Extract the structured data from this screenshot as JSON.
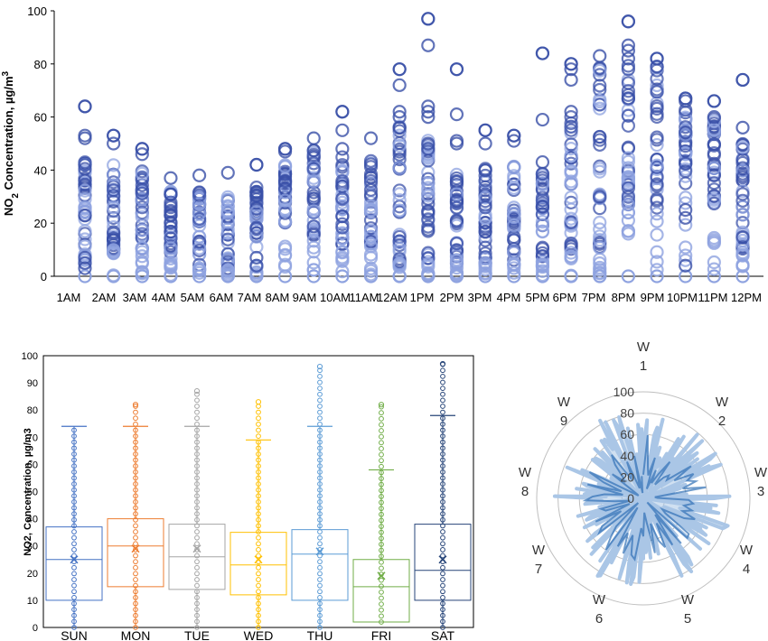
{
  "chart_data": [
    {
      "type": "scatter",
      "ylabel": "NO2 Concentration, µg/m3",
      "ylabel_parts": {
        "pre": "NO",
        "sub": "2",
        "mid": " Concentration, µg/m",
        "sup": "3"
      },
      "ylim": [
        0,
        100
      ],
      "yticks": [
        0,
        20,
        40,
        60,
        80,
        100
      ],
      "categories": [
        "1AM",
        "2AM",
        "3AM",
        "4AM",
        "5AM",
        "6AM",
        "7AM",
        "8AM",
        "9AM",
        "10AM",
        "11AM",
        "12AM",
        "1PM",
        "2PM",
        "3PM",
        "4PM",
        "5PM",
        "6PM",
        "7PM",
        "8PM",
        "9PM",
        "10PM",
        "11PM",
        "12PM"
      ],
      "ranges": [
        [
          0,
          64
        ],
        [
          0,
          53
        ],
        [
          0,
          48
        ],
        [
          0,
          37
        ],
        [
          0,
          38
        ],
        [
          0,
          39
        ],
        [
          0,
          42
        ],
        [
          0,
          48
        ],
        [
          0,
          52
        ],
        [
          0,
          62
        ],
        [
          0,
          52
        ],
        [
          0,
          78
        ],
        [
          0,
          97
        ],
        [
          0,
          78
        ],
        [
          0,
          55
        ],
        [
          0,
          53
        ],
        [
          0,
          84
        ],
        [
          0,
          80
        ],
        [
          0,
          83
        ],
        [
          0,
          96
        ],
        [
          0,
          82
        ],
        [
          0,
          67
        ],
        [
          0,
          66
        ],
        [
          0,
          74
        ]
      ],
      "dense_ranges": [
        [
          12,
          45
        ],
        [
          10,
          42
        ],
        [
          8,
          40
        ],
        [
          5,
          32
        ],
        [
          3,
          33
        ],
        [
          3,
          30
        ],
        [
          10,
          35
        ],
        [
          18,
          42
        ],
        [
          15,
          48
        ],
        [
          10,
          45
        ],
        [
          12,
          45
        ],
        [
          5,
          58
        ],
        [
          5,
          52
        ],
        [
          5,
          40
        ],
        [
          5,
          42
        ],
        [
          5,
          42
        ],
        [
          5,
          42
        ],
        [
          10,
          60
        ],
        [
          5,
          80
        ],
        [
          25,
          85
        ],
        [
          25,
          80
        ],
        [
          35,
          65
        ],
        [
          25,
          60
        ],
        [
          10,
          50
        ]
      ],
      "outliers": [
        [
          1,
          [
            64,
            53,
            52,
            7,
            5,
            3
          ]
        ],
        [
          2,
          [
            53,
            50
          ]
        ],
        [
          3,
          [
            48,
            46
          ]
        ],
        [
          7,
          [
            42,
            7,
            4
          ]
        ],
        [
          8,
          [
            48,
            47
          ]
        ],
        [
          10,
          [
            62,
            55,
            48
          ]
        ],
        [
          12,
          [
            78,
            72,
            62,
            60,
            56
          ]
        ],
        [
          13,
          [
            97,
            87,
            64,
            62,
            60,
            50,
            48
          ]
        ],
        [
          14,
          [
            78,
            61,
            51,
            50
          ]
        ],
        [
          15,
          [
            55,
            50
          ]
        ],
        [
          16,
          [
            53,
            51
          ]
        ],
        [
          17,
          [
            84,
            59,
            43
          ]
        ],
        [
          18,
          [
            80,
            78,
            74,
            62
          ]
        ],
        [
          20,
          [
            96,
            87,
            85,
            82,
            78
          ]
        ],
        [
          21,
          [
            82,
            79
          ]
        ],
        [
          22,
          [
            67,
            66,
            25,
            22,
            4
          ]
        ],
        [
          23,
          [
            66,
            60
          ]
        ],
        [
          24,
          [
            74,
            56
          ]
        ]
      ],
      "grid": false,
      "marker": "hollow-circle"
    },
    {
      "type": "box",
      "ylabel": "NO2, Concentration, µg/m3",
      "ylim": [
        0,
        100
      ],
      "yticks": [
        0,
        10,
        20,
        30,
        40,
        50,
        60,
        70,
        80,
        90,
        100
      ],
      "categories": [
        "SUN",
        "MON",
        "TUE",
        "WED",
        "THU",
        "FRI",
        "SAT"
      ],
      "colors": [
        "#4472c4",
        "#ed7d31",
        "#a5a5a5",
        "#ffc000",
        "#5b9bd5",
        "#70ad47",
        "#264478"
      ],
      "boxes": [
        {
          "name": "SUN",
          "min": 0,
          "q1": 10,
          "median": 25,
          "q3": 37,
          "max": 74,
          "mean": 25,
          "max_outlier": null
        },
        {
          "name": "MON",
          "min": 0,
          "q1": 15,
          "median": 30,
          "q3": 40,
          "max": 74,
          "mean": 29,
          "max_outlier": 82
        },
        {
          "name": "TUE",
          "min": 0,
          "q1": 14,
          "median": 26,
          "q3": 38,
          "max": 74,
          "mean": 29,
          "max_outlier": 87
        },
        {
          "name": "WED",
          "min": 0,
          "q1": 12,
          "median": 23,
          "q3": 35,
          "max": 69,
          "mean": 25,
          "max_outlier": 83
        },
        {
          "name": "THU",
          "min": 0,
          "q1": 10,
          "median": 27,
          "q3": 36,
          "max": 74,
          "mean": 28,
          "max_outlier": 96
        },
        {
          "name": "FRI",
          "min": 2,
          "q1": 2,
          "median": 15,
          "q3": 25,
          "max": 58,
          "mean": 19,
          "max_outlier": 82
        },
        {
          "name": "SAT",
          "min": 0,
          "q1": 10,
          "median": 21,
          "q3": 38,
          "max": 78,
          "mean": 25,
          "max_outlier": 97
        }
      ]
    },
    {
      "type": "radar",
      "rmax": 100,
      "rticks": [
        0,
        20,
        40,
        60,
        80,
        100
      ],
      "axis_labels": [
        [
          "W",
          "1"
        ],
        [
          "W",
          "2"
        ],
        [
          "W",
          "3"
        ],
        [
          "W",
          "4"
        ],
        [
          "W",
          "5"
        ],
        [
          "W",
          "6"
        ],
        [
          "W",
          "7"
        ],
        [
          "W",
          "8"
        ],
        [
          "W",
          "9"
        ]
      ]
    }
  ],
  "colors": {
    "scatter": "#3a50a8",
    "scatter_light": "#8fa3e0",
    "radar_fill": "#aac6e6",
    "radar_dark": "#2f6fb5",
    "ring": "#bfbfbf"
  }
}
